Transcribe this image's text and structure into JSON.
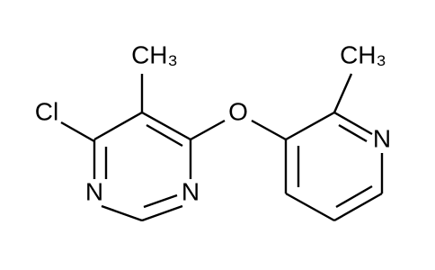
{
  "atoms": [
    {
      "label": "Cl"
    },
    {
      "label": "CH₃"
    },
    {
      "label": "O"
    },
    {
      "label": "CH₃"
    },
    {
      "label": "N"
    },
    {
      "label": "N"
    },
    {
      "label": "N"
    }
  ]
}
